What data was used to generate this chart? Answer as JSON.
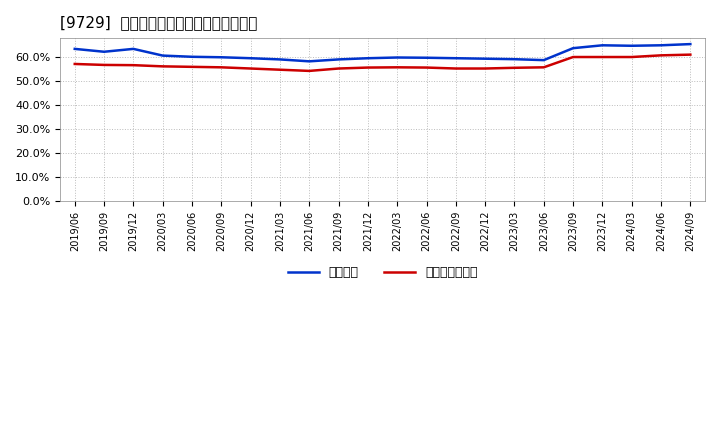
{
  "title": "[9729]  固定比率、固定長期適合率の推移",
  "background_color": "#ffffff",
  "plot_bg_color": "#ffffff",
  "grid_color": "#aaaaaa",
  "series": {
    "fixed_ratio": {
      "label": "固定比率",
      "color": "#0033cc",
      "values": [
        0.635,
        0.623,
        0.635,
        0.607,
        0.602,
        0.6,
        0.596,
        0.591,
        0.583,
        0.591,
        0.596,
        0.599,
        0.598,
        0.596,
        0.594,
        0.592,
        0.588,
        0.638,
        0.65,
        0.648,
        0.65,
        0.655
      ]
    },
    "fixed_long_ratio": {
      "label": "固定長期適合率",
      "color": "#cc0000",
      "values": [
        0.572,
        0.568,
        0.567,
        0.562,
        0.56,
        0.558,
        0.553,
        0.548,
        0.543,
        0.553,
        0.557,
        0.558,
        0.557,
        0.553,
        0.553,
        0.556,
        0.558,
        0.601,
        0.601,
        0.601,
        0.608,
        0.611
      ]
    }
  },
  "yticks": [
    0.0,
    0.1,
    0.2,
    0.3,
    0.4,
    0.5,
    0.6
  ],
  "ylim": [
    0.0,
    0.68
  ],
  "xlabel_dates": [
    "2019/06",
    "2019/09",
    "2019/12",
    "2020/03",
    "2020/06",
    "2020/09",
    "2020/12",
    "2021/03",
    "2021/06",
    "2021/09",
    "2021/12",
    "2022/03",
    "2022/06",
    "2022/09",
    "2022/12",
    "2023/03",
    "2023/06",
    "2023/09",
    "2023/12",
    "2024/03",
    "2024/06",
    "2024/09"
  ]
}
